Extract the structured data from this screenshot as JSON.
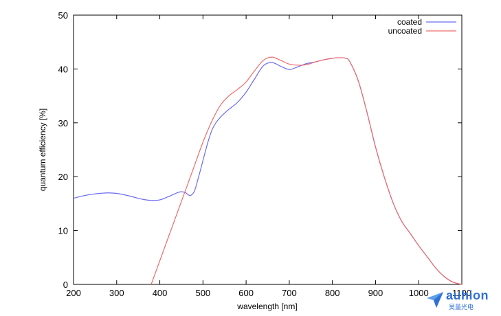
{
  "chart_data": {
    "type": "line",
    "title": "",
    "xlabel": "wavelength [nm]",
    "ylabel": "quantum efficiency [%]",
    "xlim": [
      200,
      1100
    ],
    "ylim": [
      0,
      50
    ],
    "xticks": [
      200,
      300,
      400,
      500,
      600,
      700,
      800,
      900,
      1000,
      1100
    ],
    "yticks": [
      0,
      10,
      20,
      30,
      40,
      50
    ],
    "grid": false,
    "legend_position": "top-right",
    "series": [
      {
        "name": "coated",
        "color": "#6a6af0",
        "x": [
          200,
          220,
          240,
          260,
          280,
          300,
          320,
          340,
          360,
          380,
          400,
          420,
          440,
          450,
          460,
          470,
          480,
          490,
          500,
          510,
          520,
          530,
          540,
          550,
          560,
          580,
          600,
          620,
          640,
          660,
          680,
          700,
          720,
          740,
          760,
          780,
          800,
          820,
          830,
          840,
          860,
          880,
          900,
          920,
          940,
          960,
          980,
          1000,
          1020,
          1040,
          1060,
          1080,
          1100
        ],
        "y": [
          16.0,
          16.4,
          16.7,
          16.9,
          17.0,
          16.9,
          16.6,
          16.2,
          15.8,
          15.6,
          15.7,
          16.3,
          17.0,
          17.2,
          17.0,
          16.5,
          17.3,
          20.0,
          23.0,
          26.0,
          28.5,
          30.0,
          31.0,
          31.8,
          32.5,
          33.8,
          35.7,
          38.2,
          40.6,
          41.2,
          40.5,
          39.9,
          40.4,
          41.0,
          41.3,
          41.7,
          42.0,
          42.1,
          42.0,
          41.4,
          37.8,
          32.0,
          25.5,
          20.0,
          15.3,
          11.8,
          9.5,
          7.2,
          5.1,
          3.0,
          1.4,
          0.4,
          0.0
        ]
      },
      {
        "name": "uncoated",
        "color": "#f06a6a",
        "x": [
          380,
          400,
          420,
          440,
          460,
          480,
          500,
          520,
          540,
          560,
          580,
          600,
          620,
          640,
          660,
          680,
          700,
          720,
          740,
          760,
          780,
          800,
          820,
          830,
          840,
          860,
          880,
          900,
          920,
          940,
          960,
          980,
          1000,
          1020,
          1040,
          1060,
          1080,
          1100
        ],
        "y": [
          0.0,
          4.4,
          8.8,
          13.2,
          17.6,
          22.0,
          26.4,
          30.2,
          33.2,
          35.0,
          36.2,
          37.6,
          39.7,
          41.6,
          42.2,
          41.6,
          40.9,
          40.7,
          40.8,
          41.3,
          41.7,
          42.0,
          42.1,
          42.0,
          41.4,
          37.8,
          32.0,
          25.5,
          20.0,
          15.3,
          11.8,
          9.5,
          7.2,
          5.1,
          3.0,
          1.4,
          0.4,
          0.0
        ]
      }
    ]
  },
  "watermark": {
    "name": "auhion",
    "subtitle": "昊量光电"
  }
}
